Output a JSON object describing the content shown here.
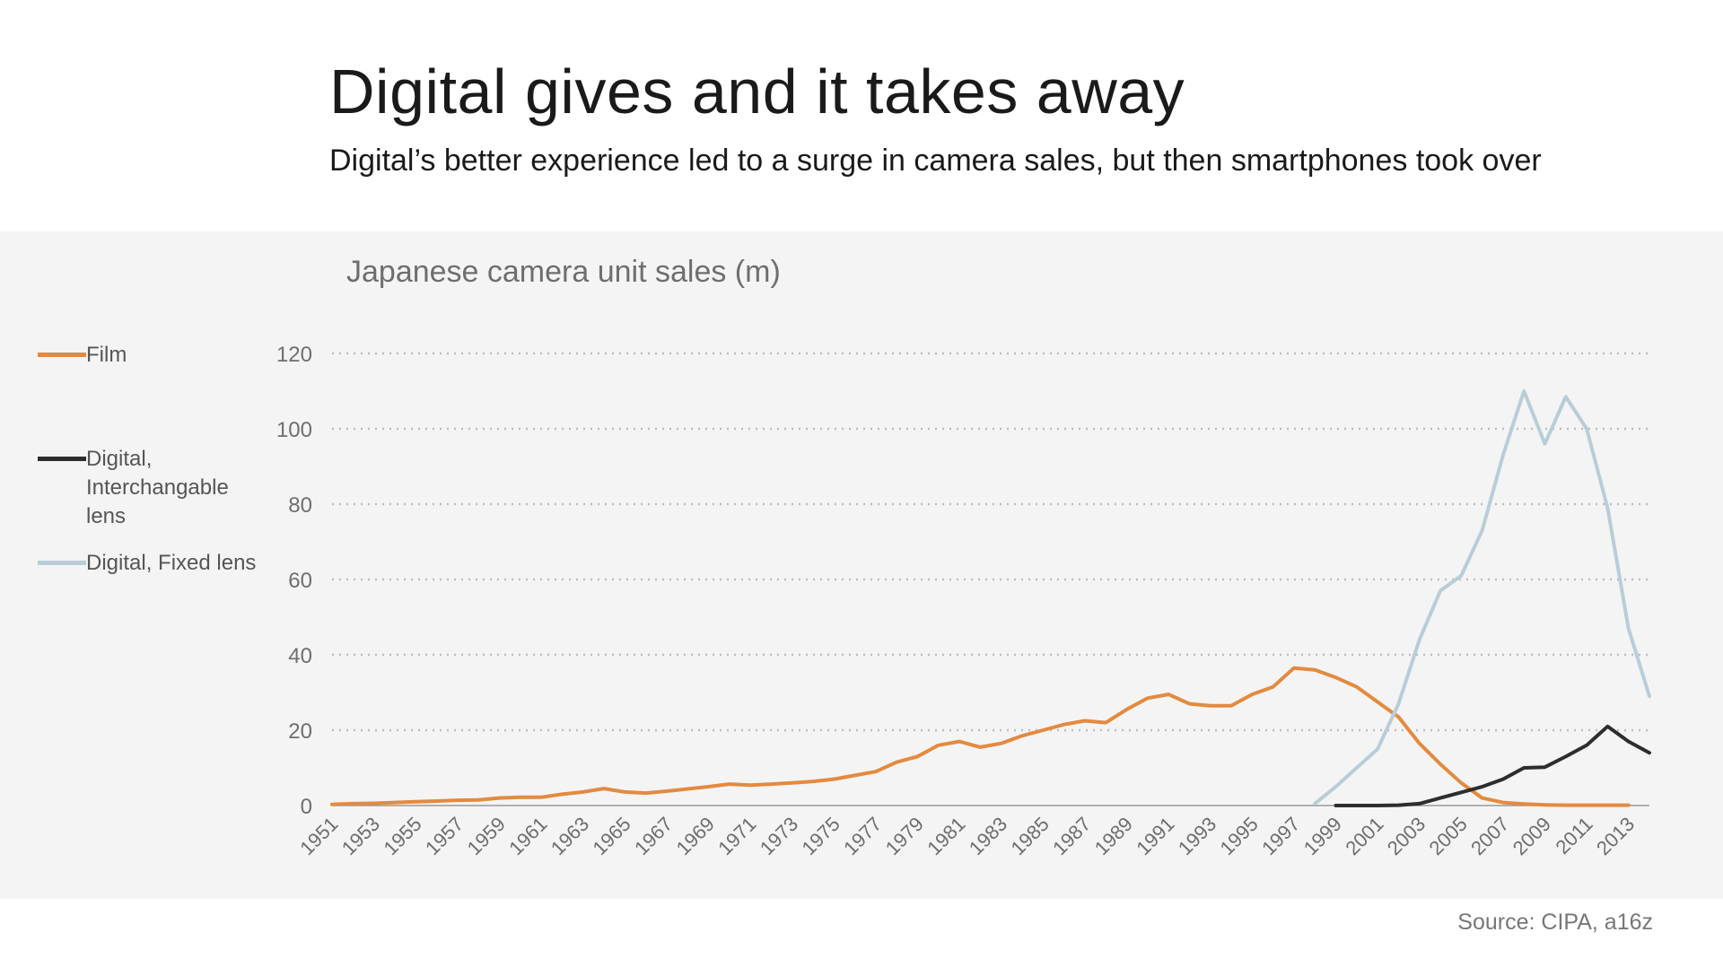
{
  "header": {
    "title": "Digital gives and it takes away",
    "subtitle": "Digital’s better experience led to a surge in camera sales, but then smartphones took over"
  },
  "footer": {
    "source": "Source: CIPA, a16z"
  },
  "legend": [
    {
      "label": "Film",
      "color": "#e38a3f"
    },
    {
      "label": "Digital, Interchangable lens",
      "color": "#2d2d2d"
    },
    {
      "label": "Digital, Fixed lens",
      "color": "#b9cdd8"
    }
  ],
  "chart_data": {
    "type": "line",
    "title": "Japanese camera unit sales (m)",
    "xlabel": "",
    "ylabel": "",
    "ylim": [
      0,
      120
    ],
    "yticks": [
      0,
      20,
      40,
      60,
      80,
      100,
      120
    ],
    "xlim": [
      1951,
      2014
    ],
    "xticks": [
      "1951",
      "1953",
      "1955",
      "1957",
      "1959",
      "1961",
      "1963",
      "1965",
      "1967",
      "1969",
      "1971",
      "1973",
      "1975",
      "1977",
      "1979",
      "1981",
      "1983",
      "1985",
      "1987",
      "1989",
      "1991",
      "1993",
      "1995",
      "1997",
      "1999",
      "2001",
      "2003",
      "2005",
      "2007",
      "2009",
      "2011",
      "2013"
    ],
    "grid": "horizontal dotted",
    "series": [
      {
        "name": "Film",
        "color": "#e38a3f",
        "x": [
          1951,
          1952,
          1953,
          1954,
          1955,
          1956,
          1957,
          1958,
          1959,
          1960,
          1961,
          1962,
          1963,
          1964,
          1965,
          1966,
          1967,
          1968,
          1969,
          1970,
          1971,
          1972,
          1973,
          1974,
          1975,
          1976,
          1977,
          1978,
          1979,
          1980,
          1981,
          1982,
          1983,
          1984,
          1985,
          1986,
          1987,
          1988,
          1989,
          1990,
          1991,
          1992,
          1993,
          1994,
          1995,
          1996,
          1997,
          1998,
          1999,
          2000,
          2001,
          2002,
          2003,
          2004,
          2005,
          2006,
          2007,
          2008,
          2009,
          2010,
          2011,
          2012,
          2013
        ],
        "values": [
          0.3,
          0.5,
          0.6,
          0.8,
          1.0,
          1.2,
          1.4,
          1.5,
          2.0,
          2.2,
          2.2,
          3.0,
          3.6,
          4.5,
          3.6,
          3.3,
          3.8,
          4.4,
          5.0,
          5.7,
          5.4,
          5.7,
          6.0,
          6.4,
          7.0,
          8.0,
          9.0,
          11.5,
          13.0,
          16.0,
          17.0,
          15.5,
          16.5,
          18.5,
          20.0,
          21.5,
          22.5,
          22.0,
          25.5,
          28.5,
          29.5,
          27.0,
          26.5,
          26.5,
          29.5,
          31.5,
          36.5,
          36.0,
          34.0,
          31.5,
          27.5,
          23.5,
          16.5,
          11.0,
          6.0,
          2.0,
          0.8,
          0.4,
          0.2,
          0.1,
          0.1,
          0.1,
          0.1
        ]
      },
      {
        "name": "Digital, Interchangable lens",
        "color": "#2d2d2d",
        "x": [
          1999,
          2000,
          2001,
          2002,
          2003,
          2004,
          2005,
          2006,
          2007,
          2008,
          2009,
          2010,
          2011,
          2012,
          2013,
          2014
        ],
        "values": [
          0,
          0,
          0,
          0.1,
          0.5,
          2.0,
          3.5,
          5.0,
          7.0,
          10.0,
          10.2,
          13.0,
          16.0,
          21.0,
          17.0,
          14.0
        ]
      },
      {
        "name": "Digital, Fixed lens",
        "color": "#b9cdd8",
        "x": [
          1998,
          1999,
          2000,
          2001,
          2002,
          2003,
          2004,
          2005,
          2006,
          2007,
          2008,
          2009,
          2010,
          2011,
          2012,
          2013,
          2014
        ],
        "values": [
          0.5,
          5.0,
          10.0,
          15.0,
          27.0,
          44.0,
          57.0,
          61.0,
          73.0,
          93.0,
          110.0,
          96.0,
          108.5,
          100.0,
          79.0,
          47.0,
          29.0
        ]
      }
    ]
  }
}
